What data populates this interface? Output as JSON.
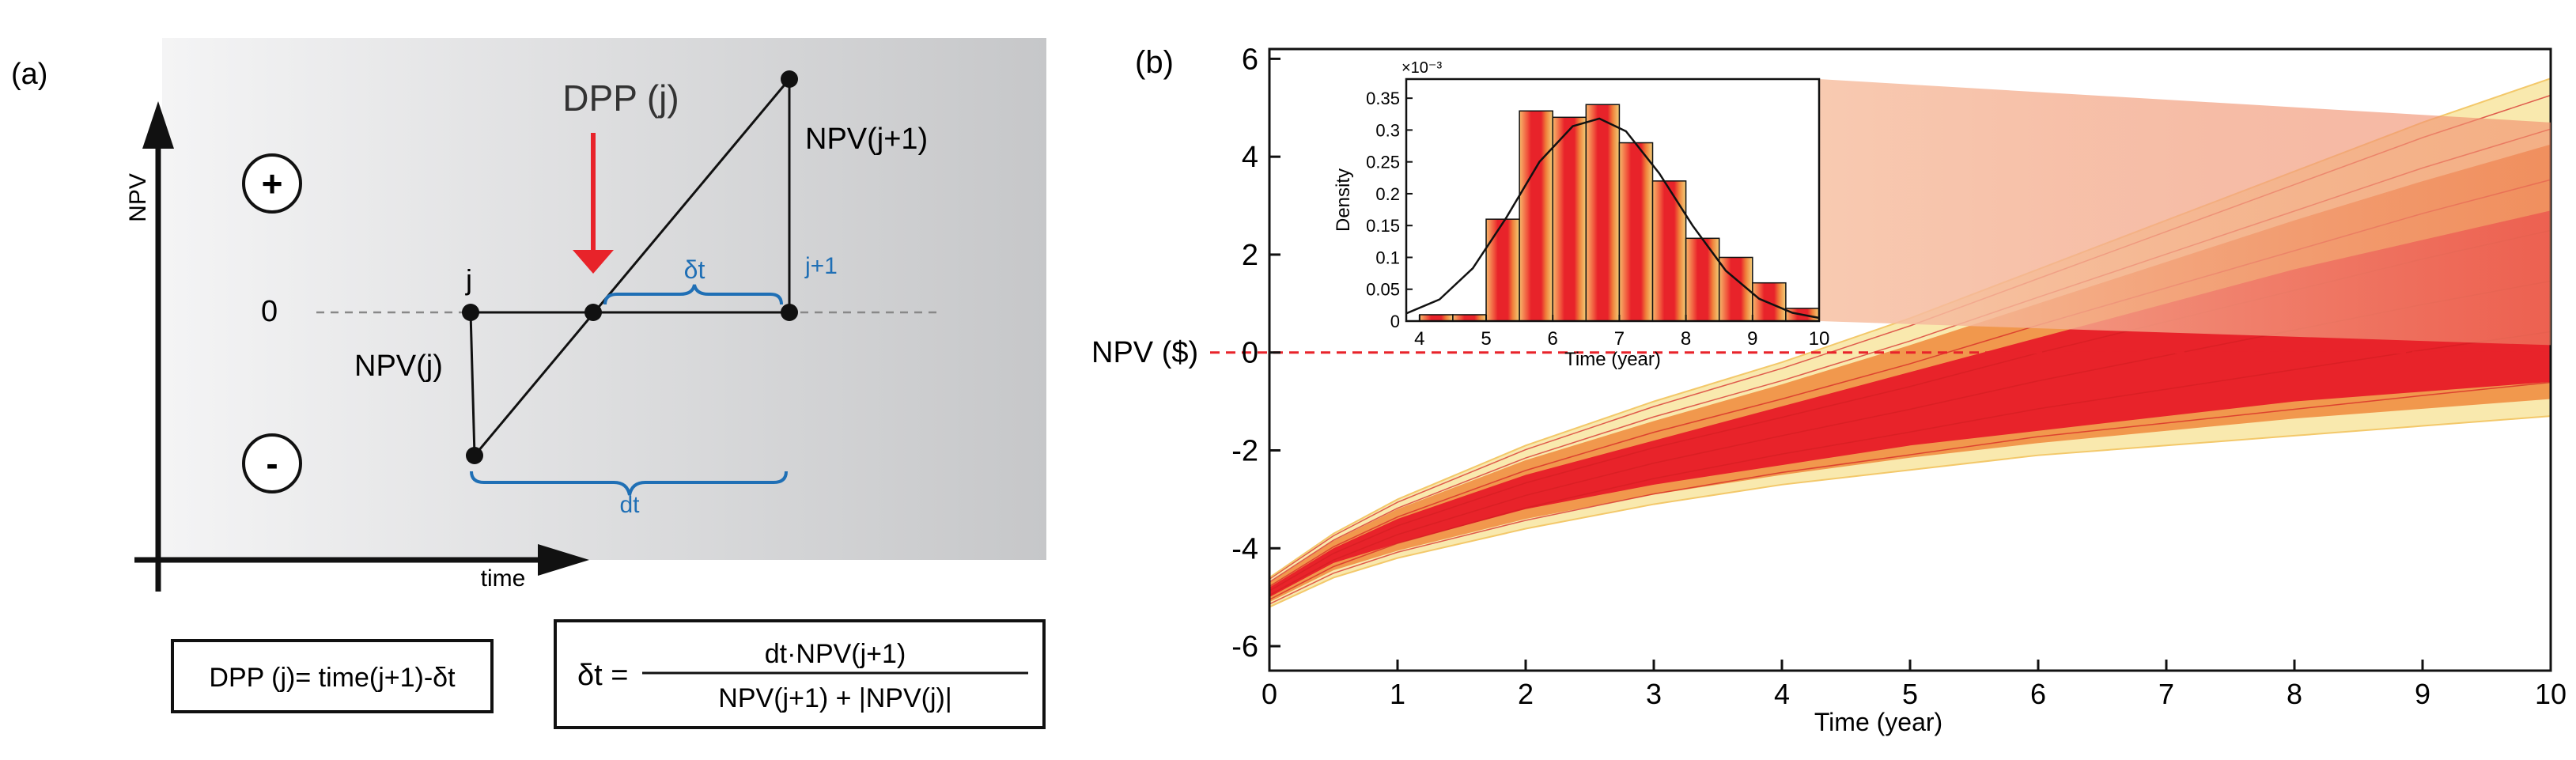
{
  "panel_a": {
    "label": "(a)",
    "y_axis_label": "NPV",
    "x_axis_label": "time",
    "zero_label": "0",
    "plus_symbol": "+",
    "minus_symbol": "-",
    "point_j": "j",
    "point_j1": "j+1",
    "npv_j": "NPV(j)",
    "npv_j1": "NPV(j+1)",
    "dpp_label": "DPP (j)",
    "delta_t": "δt",
    "dt": "dt",
    "formula_dpp": "DPP (j)= time(j+1)-δt",
    "formula_delta_lhs": "δt =",
    "formula_numerator": "dt·NPV(j+1)",
    "formula_denominator": "NPV(j+1) + |NPV(j)|",
    "colors": {
      "blue": "#1f6fb5",
      "red": "#e8232a",
      "grey_light": "#f1f1f2",
      "grey_dark": "#c9cacc"
    }
  },
  "panel_b": {
    "label": "(b)",
    "ylabel": "NPV ($)",
    "xlabel": "Time (year)",
    "inset": {
      "exponent_label": "×10⁻³",
      "ylabel": "Density",
      "xlabel": "Time (year)"
    },
    "colors": {
      "red": "#e8232a",
      "orange": "#f08a3c",
      "yellow": "#f7e9a0",
      "dash": "#e8232a"
    }
  },
  "chart_data": [
    {
      "type": "line",
      "title": "",
      "xlabel": "Time (year)",
      "ylabel": "NPV ($)",
      "xlim": [
        0,
        10
      ],
      "ylim": [
        -6.5,
        6.2
      ],
      "xticks": [
        0,
        1,
        2,
        3,
        4,
        5,
        6,
        7,
        8,
        9,
        10
      ],
      "yticks": [
        -6,
        -4,
        -2,
        0,
        2,
        4,
        6
      ],
      "reference_line_y": 0,
      "series": [
        {
          "role": "upper-envelope",
          "x": [
            0,
            0.5,
            1,
            2,
            3,
            4,
            5,
            6,
            7,
            8,
            9,
            10
          ],
          "y": [
            -4.6,
            -3.7,
            -3.0,
            -1.9,
            -1.0,
            -0.2,
            0.7,
            1.7,
            2.7,
            3.7,
            4.7,
            5.6
          ]
        },
        {
          "role": "dense-core-upper",
          "x": [
            0,
            0.5,
            1,
            2,
            3,
            4,
            5,
            6,
            7,
            8,
            9,
            10
          ],
          "y": [
            -4.8,
            -4.0,
            -3.4,
            -2.5,
            -1.8,
            -1.1,
            -0.4,
            0.3,
            1.0,
            1.7,
            2.3,
            2.9
          ]
        },
        {
          "role": "dense-core-lower",
          "x": [
            0,
            0.5,
            1,
            2,
            3,
            4,
            5,
            6,
            7,
            8,
            9,
            10
          ],
          "y": [
            -5.0,
            -4.3,
            -3.9,
            -3.2,
            -2.7,
            -2.3,
            -1.9,
            -1.6,
            -1.3,
            -1.0,
            -0.8,
            -0.6
          ]
        },
        {
          "role": "lower-envelope",
          "x": [
            0,
            0.5,
            1,
            2,
            3,
            4,
            5,
            6,
            7,
            8,
            9,
            10
          ],
          "y": [
            -5.2,
            -4.6,
            -4.2,
            -3.6,
            -3.1,
            -2.7,
            -2.4,
            -2.1,
            -1.9,
            -1.7,
            -1.5,
            -1.3
          ]
        }
      ]
    },
    {
      "type": "bar",
      "title": "",
      "xlabel": "Time (year)",
      "ylabel": "Density",
      "xlim": [
        3.8,
        10
      ],
      "ylim": [
        0,
        0.38
      ],
      "xticks": [
        4,
        5,
        6,
        7,
        8,
        9,
        10
      ],
      "yticks": [
        0,
        0.05,
        0.1,
        0.15,
        0.2,
        0.25,
        0.3,
        0.35
      ],
      "bin_width": 0.5,
      "bin_starts": [
        4.0,
        4.5,
        5.0,
        5.5,
        6.0,
        6.5,
        7.0,
        7.5,
        8.0,
        8.5,
        9.0,
        9.5
      ],
      "values": [
        0.01,
        0.01,
        0.16,
        0.33,
        0.32,
        0.34,
        0.28,
        0.22,
        0.13,
        0.1,
        0.06,
        0.02
      ],
      "fit_curve": {
        "type": "normal",
        "x": [
          3.8,
          4.3,
          4.8,
          5.3,
          5.8,
          6.3,
          6.7,
          7.1,
          7.6,
          8.1,
          8.6,
          9.1,
          9.6,
          10.0
        ],
        "y": [
          0.012,
          0.034,
          0.083,
          0.162,
          0.25,
          0.306,
          0.318,
          0.298,
          0.232,
          0.15,
          0.079,
          0.035,
          0.013,
          0.005
        ]
      }
    }
  ]
}
